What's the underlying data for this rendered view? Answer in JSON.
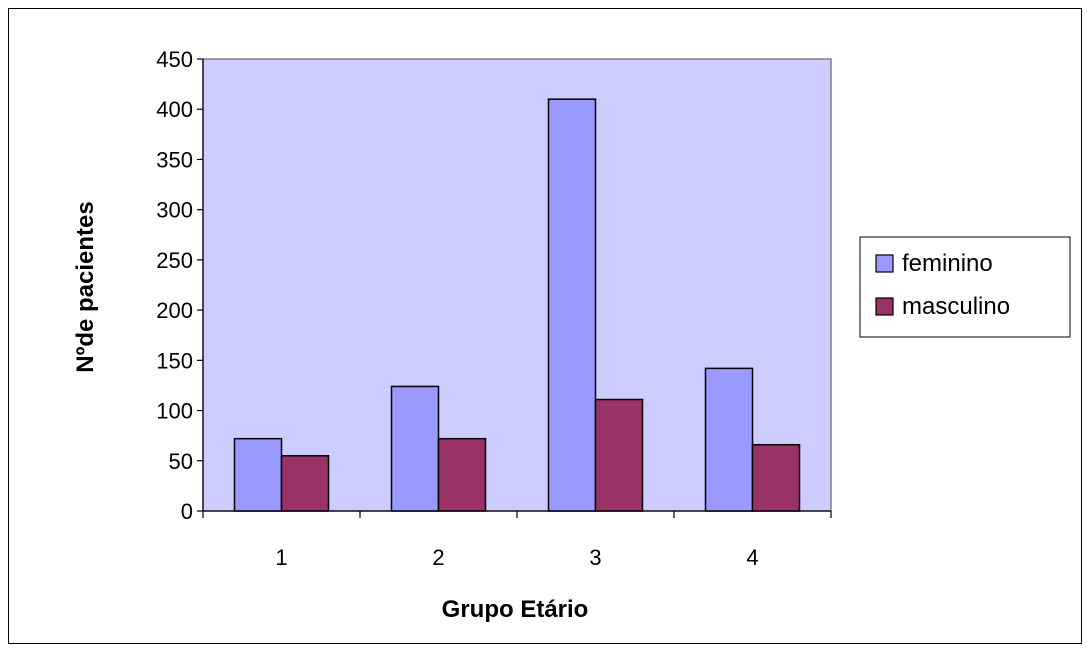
{
  "chart_data": {
    "type": "bar",
    "title": "",
    "xlabel": "Grupo Etário",
    "ylabel": "Nºde pacientes",
    "categories": [
      "1",
      "2",
      "3",
      "4"
    ],
    "series": [
      {
        "name": "feminino",
        "values": [
          72,
          124,
          410,
          142
        ],
        "color": "#9999ff"
      },
      {
        "name": "masculino",
        "values": [
          55,
          72,
          111,
          66
        ],
        "color": "#993366"
      }
    ],
    "ylim": [
      0,
      450
    ],
    "yticks": [
      0,
      50,
      100,
      150,
      200,
      250,
      300,
      350,
      400,
      450
    ],
    "grid": false,
    "plot_background": "#ccccff",
    "legend_position": "right"
  }
}
